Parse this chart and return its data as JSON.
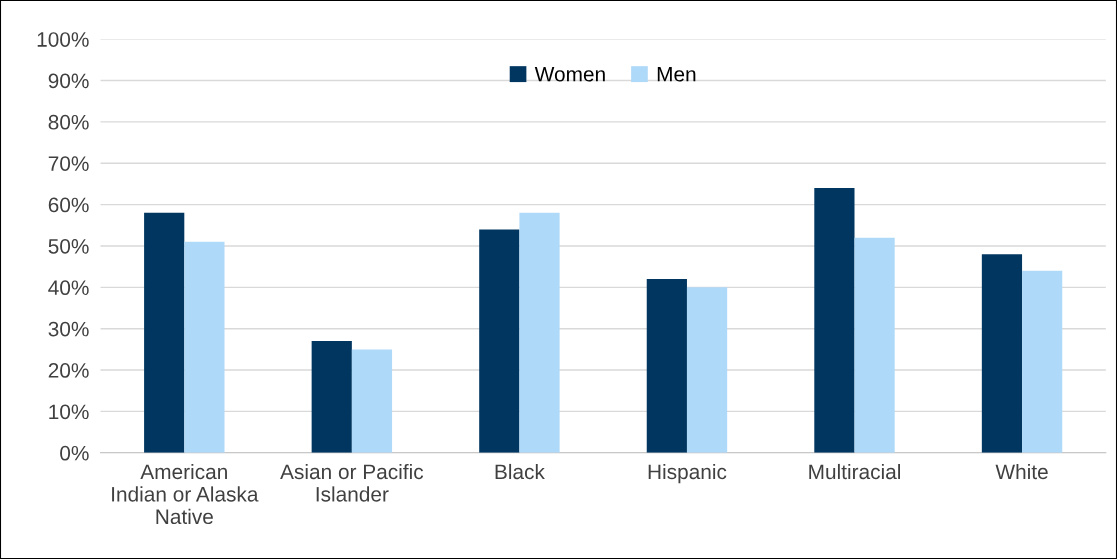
{
  "chart_data": {
    "type": "bar",
    "categories": [
      "American\nIndian or Alaska\nNative",
      "Asian or Pacific\nIslander",
      "Black",
      "Hispanic",
      "Multiracial",
      "White"
    ],
    "series": [
      {
        "name": "Women",
        "color": "#003660",
        "values": [
          58,
          27,
          54,
          42,
          64,
          48
        ]
      },
      {
        "name": "Men",
        "color": "#afd9f8",
        "values": [
          51,
          25,
          58,
          40,
          52,
          44
        ]
      }
    ],
    "ylim": [
      0,
      100
    ],
    "yticks": [
      {
        "value": 0,
        "label": "0%"
      },
      {
        "value": 10,
        "label": "10%"
      },
      {
        "value": 20,
        "label": "20%"
      },
      {
        "value": 30,
        "label": "30%"
      },
      {
        "value": 40,
        "label": "40%"
      },
      {
        "value": 50,
        "label": "50%"
      },
      {
        "value": 60,
        "label": "60%"
      },
      {
        "value": 70,
        "label": "70%"
      },
      {
        "value": 80,
        "label": "80%"
      },
      {
        "value": 90,
        "label": "90%"
      },
      {
        "value": 100,
        "label": "100%"
      }
    ],
    "grid": "y",
    "legend": "top"
  }
}
